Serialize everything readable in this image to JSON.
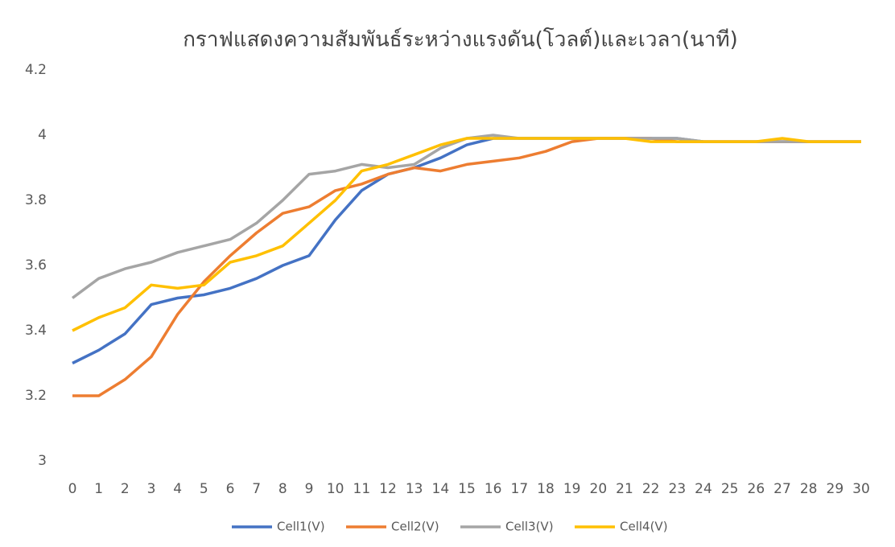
{
  "chart_data": {
    "type": "line",
    "title": "กราฟแสดงความสัมพันธ์ระหว่างแรงดัน(โวลต์)และเวลา(นาที)",
    "categories": [
      0,
      1,
      2,
      3,
      4,
      5,
      6,
      7,
      8,
      9,
      10,
      11,
      12,
      13,
      14,
      15,
      16,
      17,
      18,
      19,
      20,
      21,
      22,
      23,
      24,
      25,
      26,
      27,
      28,
      29,
      30
    ],
    "ylim": [
      3,
      4.2
    ],
    "yticks": [
      3,
      3.2,
      3.4,
      3.6,
      3.8,
      4,
      4.2
    ],
    "grid": false,
    "legend": "bottom",
    "series": [
      {
        "name": "Cell1(V)",
        "color": "#4472c4",
        "values": [
          3.3,
          3.34,
          3.39,
          3.48,
          3.5,
          3.51,
          3.53,
          3.56,
          3.6,
          3.63,
          3.74,
          3.83,
          3.88,
          3.9,
          3.93,
          3.97,
          3.99,
          3.99,
          3.99,
          3.99,
          3.99,
          3.99,
          3.99,
          3.99,
          3.98,
          3.98,
          3.98,
          3.98,
          3.98,
          3.98,
          3.98
        ]
      },
      {
        "name": "Cell2(V)",
        "color": "#ed7d31",
        "values": [
          3.2,
          3.2,
          3.25,
          3.32,
          3.45,
          3.55,
          3.63,
          3.7,
          3.76,
          3.78,
          3.83,
          3.85,
          3.88,
          3.9,
          3.89,
          3.91,
          3.92,
          3.93,
          3.95,
          3.98,
          3.99,
          3.99,
          3.99,
          3.98,
          3.98,
          3.98,
          3.98,
          3.98,
          3.98,
          3.98,
          3.98
        ]
      },
      {
        "name": "Cell3(V)",
        "color": "#a5a5a5",
        "values": [
          3.5,
          3.56,
          3.59,
          3.61,
          3.64,
          3.66,
          3.68,
          3.73,
          3.8,
          3.88,
          3.89,
          3.91,
          3.9,
          3.91,
          3.96,
          3.99,
          4.0,
          3.99,
          3.99,
          3.99,
          3.99,
          3.99,
          3.99,
          3.99,
          3.98,
          3.98,
          3.98,
          3.98,
          3.98,
          3.98,
          3.98
        ]
      },
      {
        "name": "Cell4(V)",
        "color": "#ffc000",
        "values": [
          3.4,
          3.44,
          3.47,
          3.54,
          3.53,
          3.54,
          3.61,
          3.63,
          3.66,
          3.73,
          3.8,
          3.89,
          3.91,
          3.94,
          3.97,
          3.99,
          3.99,
          3.99,
          3.99,
          3.99,
          3.99,
          3.99,
          3.98,
          3.98,
          3.98,
          3.98,
          3.98,
          3.99,
          3.98,
          3.98,
          3.98
        ]
      }
    ]
  }
}
